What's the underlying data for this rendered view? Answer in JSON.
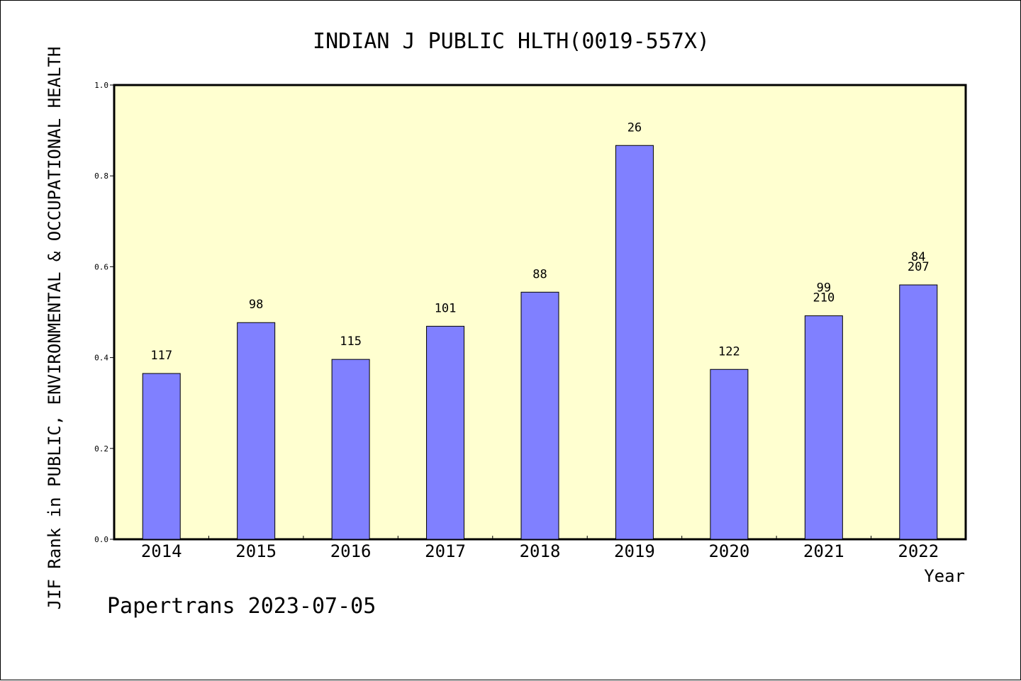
{
  "chart_data": {
    "type": "bar",
    "title": "INDIAN J PUBLIC HLTH(0019-557X)",
    "ylabel": "JIF Rank in PUBLIC, ENVIRONMENTAL & OCCUPATIONAL HEALTH",
    "xlabel": "Year",
    "ylim": [
      0,
      1.0
    ],
    "yticks": [
      "0.0",
      "0.2",
      "0.4",
      "0.6",
      "0.8",
      "1.0"
    ],
    "categories": [
      "2014",
      "2015",
      "2016",
      "2017",
      "2018",
      "2019",
      "2020",
      "2021",
      "2022"
    ],
    "values": [
      0.365,
      0.477,
      0.396,
      0.469,
      0.544,
      0.867,
      0.374,
      0.492,
      0.56
    ],
    "bar_labels": [
      [
        "117"
      ],
      [
        "98"
      ],
      [
        "115"
      ],
      [
        "101"
      ],
      [
        "88"
      ],
      [
        "26"
      ],
      [
        "122"
      ],
      [
        "99",
        "210"
      ],
      [
        "84",
        "207"
      ]
    ],
    "grid": false,
    "colors": {
      "plot_background": "#ffffd0",
      "bar_fill": "#8080ff",
      "bar_stroke": "#000000"
    }
  },
  "footer": "Papertrans 2023-07-05"
}
